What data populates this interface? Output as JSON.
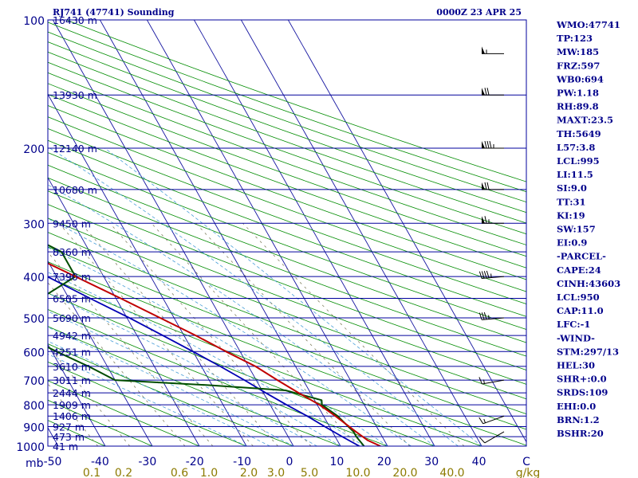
{
  "header": {
    "station": "RJ741 (47741) Sounding",
    "time": "0000Z 23 APR 25"
  },
  "chart_data": {
    "type": "skew-t log-p sounding",
    "pressure_labels": [
      {
        "p": 100,
        "label": "100"
      },
      {
        "p": 200,
        "label": "200"
      },
      {
        "p": 300,
        "label": "300"
      },
      {
        "p": 400,
        "label": "400"
      },
      {
        "p": 500,
        "label": "500"
      },
      {
        "p": 600,
        "label": "600"
      },
      {
        "p": 700,
        "label": "700"
      },
      {
        "p": 800,
        "label": "800"
      },
      {
        "p": 900,
        "label": "900"
      },
      {
        "p": 1000,
        "label": "1000"
      }
    ],
    "pressure_unit": "mb",
    "height_labels": [
      {
        "p": 100,
        "label": "16430 m"
      },
      {
        "p": 150,
        "label": "13930 m"
      },
      {
        "p": 200,
        "label": "12140 m"
      },
      {
        "p": 250,
        "label": "10680 m"
      },
      {
        "p": 300,
        "label": "9450 m"
      },
      {
        "p": 350,
        "label": "8360 m"
      },
      {
        "p": 400,
        "label": "7390 m"
      },
      {
        "p": 450,
        "label": "6505 m"
      },
      {
        "p": 500,
        "label": "5690 m"
      },
      {
        "p": 550,
        "label": "4942 m"
      },
      {
        "p": 600,
        "label": "4251 m"
      },
      {
        "p": 650,
        "label": "3610 m"
      },
      {
        "p": 700,
        "label": "3011 m"
      },
      {
        "p": 750,
        "label": "2444 m"
      },
      {
        "p": 800,
        "label": "1909 m"
      },
      {
        "p": 850,
        "label": "1406 m"
      },
      {
        "p": 900,
        "label": "927 m"
      },
      {
        "p": 950,
        "label": "473 m"
      },
      {
        "p": 1000,
        "label": "41 m"
      }
    ],
    "temperature_ticks": [
      "-50",
      "-40",
      "-30",
      "-20",
      "-10",
      "0",
      "10",
      "20",
      "30",
      "40",
      "C"
    ],
    "mixing_ratio_labels": [
      "0.1",
      "0.2",
      "0.6",
      "1.0",
      "2.0",
      "3.0",
      "5.0",
      "10.0",
      "20.0",
      "40.0",
      "g/kg"
    ],
    "temperature_profile": [
      {
        "p": 1000,
        "t": 18.5
      },
      {
        "p": 970,
        "t": 16.5
      },
      {
        "p": 925,
        "t": 15.0
      },
      {
        "p": 850,
        "t": 12.5
      },
      {
        "p": 800,
        "t": 10.5
      },
      {
        "p": 750,
        "t": 7.5
      },
      {
        "p": 700,
        "t": 4.5
      },
      {
        "p": 650,
        "t": 1.5
      },
      {
        "p": 600,
        "t": -3.0
      },
      {
        "p": 550,
        "t": -7.5
      },
      {
        "p": 500,
        "t": -13.0
      },
      {
        "p": 450,
        "t": -19.0
      },
      {
        "p": 400,
        "t": -26.0
      },
      {
        "p": 350,
        "t": -34.0
      },
      {
        "p": 300,
        "t": -42.0
      },
      {
        "p": 250,
        "t": -51.0
      },
      {
        "p": 200,
        "t": -60.0
      },
      {
        "p": 150,
        "t": -70.0
      },
      {
        "p": 100,
        "t": -81.0
      }
    ],
    "dewpoint_profile": [
      {
        "p": 1000,
        "t": 15.0
      },
      {
        "p": 950,
        "t": 14.5
      },
      {
        "p": 925,
        "t": 14.5
      },
      {
        "p": 900,
        "t": 14.0
      },
      {
        "p": 850,
        "t": 13.0
      },
      {
        "p": 800,
        "t": 11.0
      },
      {
        "p": 780,
        "t": 11.5
      },
      {
        "p": 740,
        "t": 5.0
      },
      {
        "p": 720,
        "t": -10.0
      },
      {
        "p": 700,
        "t": -30.0
      },
      {
        "p": 650,
        "t": -34.0
      },
      {
        "p": 600,
        "t": -39.0
      },
      {
        "p": 550,
        "t": -44.0
      },
      {
        "p": 500,
        "t": -50.0
      },
      {
        "p": 450,
        "t": -36.0
      },
      {
        "p": 400,
        "t": -26.0
      },
      {
        "p": 350,
        "t": -26.0
      },
      {
        "p": 320,
        "t": -31.0
      },
      {
        "p": 290,
        "t": -37.0
      }
    ],
    "parcel_profile": [
      {
        "p": 1000,
        "t": 14.0
      },
      {
        "p": 950,
        "t": 11.5
      },
      {
        "p": 900,
        "t": 9.0
      },
      {
        "p": 850,
        "t": 6.5
      },
      {
        "p": 800,
        "t": 3.5
      },
      {
        "p": 750,
        "t": 0.5
      },
      {
        "p": 700,
        "t": -2.5
      },
      {
        "p": 650,
        "t": -6.0
      },
      {
        "p": 600,
        "t": -10.0
      },
      {
        "p": 550,
        "t": -14.5
      },
      {
        "p": 500,
        "t": -19.5
      },
      {
        "p": 450,
        "t": -25.5
      },
      {
        "p": 400,
        "t": -32.0
      },
      {
        "p": 350,
        "t": -40.0
      },
      {
        "p": 300,
        "t": -49.0
      },
      {
        "p": 250,
        "t": -59.0
      },
      {
        "p": 200,
        "t": -70.0
      },
      {
        "p": 150,
        "t": -84.0
      },
      {
        "p": 100,
        "t": -103.0
      }
    ],
    "wind_barbs": [
      {
        "p": 925,
        "dir": 240,
        "spd": 10
      },
      {
        "p": 850,
        "dir": 250,
        "spd": 15
      },
      {
        "p": 700,
        "dir": 260,
        "spd": 15
      },
      {
        "p": 500,
        "dir": 265,
        "spd": 35
      },
      {
        "p": 400,
        "dir": 265,
        "spd": 45
      },
      {
        "p": 300,
        "dir": 270,
        "spd": 65
      },
      {
        "p": 250,
        "dir": 270,
        "spd": 70
      },
      {
        "p": 200,
        "dir": 270,
        "spd": 85
      },
      {
        "p": 150,
        "dir": 270,
        "spd": 70
      },
      {
        "p": 120,
        "dir": 270,
        "spd": 55
      }
    ]
  },
  "indices": [
    "WMO:47741",
    "TP:123",
    "MW:185",
    "FRZ:597",
    "WB0:694",
    "PW:1.18",
    "RH:89.8",
    "MAXT:23.5",
    "TH:5649",
    "L57:3.8",
    "LCL:995",
    "LI:11.5",
    "SI:9.0",
    "TT:31",
    "KI:19",
    "SW:157",
    "EI:0.9",
    "-PARCEL-",
    "CAPE:24",
    "CINH:43603",
    "LCL:950",
    "CAP:11.0",
    "LFC:-1",
    "-WIND-",
    "STM:297/13",
    "HEL:30",
    "SHR+:0.0",
    "SRDS:109",
    "EHI:0.0",
    "BRN:1.2",
    "BSHR:20"
  ],
  "colors": {
    "isobar": "#00009c",
    "isotherm": "#1414a0",
    "dry_adiabat": "#008c00",
    "moist_adiabat": "#4a9fd8",
    "mixing_ratio": "#808060",
    "temperature": "#c00000",
    "dewpoint": "#004d00",
    "parcel": "#0000b4",
    "labels": "#00008b",
    "mixing_labels": "#8c7a00"
  }
}
